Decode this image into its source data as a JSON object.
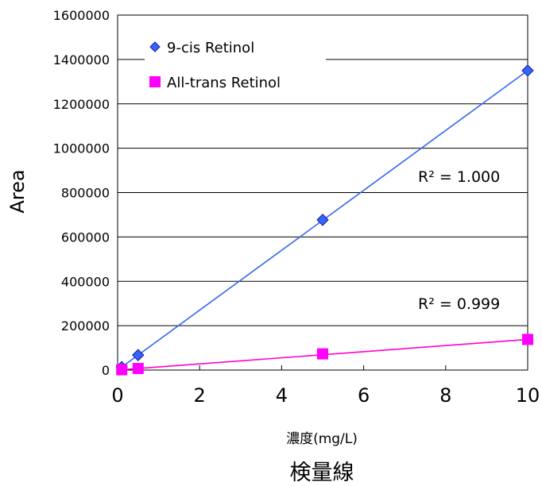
{
  "chart_data": {
    "type": "scatter",
    "title": "検量線",
    "xlabel": "濃度(mg/L)",
    "ylabel": "Area",
    "xlim": [
      0,
      10
    ],
    "ylim": [
      0,
      1600000
    ],
    "xticks": [
      "0",
      "2",
      "4",
      "6",
      "8",
      "10"
    ],
    "yticks": [
      "0",
      "200000",
      "400000",
      "600000",
      "800000",
      "1000000",
      "1200000",
      "1400000",
      "1600000"
    ],
    "grid": "horizontal",
    "legend_position": "top-left",
    "series": [
      {
        "name": "9-cis Retinol",
        "marker": "diamond",
        "color": "#3366ff",
        "line_color": "#3366ee",
        "points": [
          {
            "x": 0.1,
            "y": 13500
          },
          {
            "x": 0.5,
            "y": 67500
          },
          {
            "x": 5,
            "y": 677000
          },
          {
            "x": 10,
            "y": 1350000
          }
        ],
        "trendline": {
          "x": [
            0.1,
            10
          ],
          "y": [
            13500,
            1350000
          ]
        },
        "r2_label": "R² = 1.000"
      },
      {
        "name": "All-trans Retinol",
        "marker": "square",
        "color": "#ff00ff",
        "line_color": "#ff00cc",
        "points": [
          {
            "x": 0.1,
            "y": 1500
          },
          {
            "x": 0.5,
            "y": 7000
          },
          {
            "x": 5,
            "y": 73000
          },
          {
            "x": 10,
            "y": 138000
          }
        ],
        "trendline": {
          "x": [
            0.1,
            10
          ],
          "y": [
            1500,
            138000
          ]
        },
        "r2_label": "R² = 0.999"
      }
    ]
  }
}
